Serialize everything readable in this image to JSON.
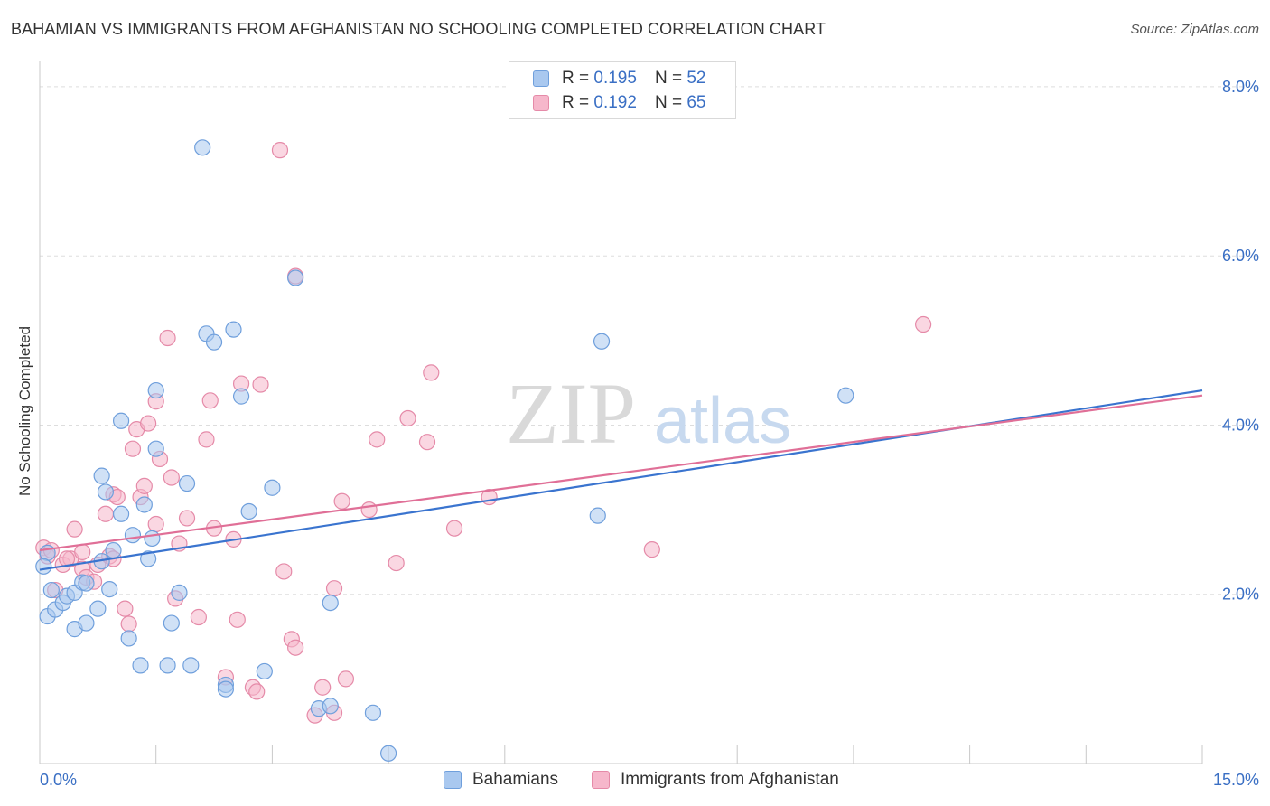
{
  "title": "BAHAMIAN VS IMMIGRANTS FROM AFGHANISTAN NO SCHOOLING COMPLETED CORRELATION CHART",
  "source": "Source: ZipAtlas.com",
  "watermark": {
    "zip": "ZIP",
    "atlas": "atlas"
  },
  "legend": {
    "r_label": "R =",
    "n_label": "N =",
    "series": [
      {
        "r": "0.195",
        "n": "52"
      },
      {
        "r": "0.192",
        "n": "65"
      }
    ]
  },
  "colors": {
    "blue_fill": "#a9c8ef",
    "blue_stroke": "#6f9fdc",
    "blue_line": "#3a74cf",
    "pink_fill": "#f6b7cb",
    "pink_stroke": "#e58aa8",
    "pink_line": "#e06f97",
    "tick": "#3a6fc4",
    "grid": "#dddddd"
  },
  "chart_data": {
    "type": "scatter",
    "title": "BAHAMIAN VS IMMIGRANTS FROM AFGHANISTAN NO SCHOOLING COMPLETED CORRELATION CHART",
    "xlabel": "",
    "ylabel": "No Schooling Completed",
    "xlim": [
      0,
      15
    ],
    "ylim": [
      0,
      8
    ],
    "x_tick_labels": {
      "min": "0.0%",
      "max": "15.0%"
    },
    "y_ticks": [
      {
        "value": 2,
        "label": "2.0%"
      },
      {
        "value": 4,
        "label": "4.0%"
      },
      {
        "value": 6,
        "label": "6.0%"
      },
      {
        "value": 8,
        "label": "8.0%"
      }
    ],
    "series": [
      {
        "name": "Bahamians",
        "color": "#a9c8ef",
        "trend": {
          "x": [
            0,
            15
          ],
          "y": [
            2.29,
            4.41
          ]
        },
        "points": [
          [
            0.1,
            2.49
          ],
          [
            0.05,
            2.33
          ],
          [
            0.1,
            1.74
          ],
          [
            0.15,
            2.05
          ],
          [
            0.2,
            1.82
          ],
          [
            0.3,
            1.9
          ],
          [
            0.35,
            1.98
          ],
          [
            0.45,
            2.02
          ],
          [
            0.45,
            1.59
          ],
          [
            0.6,
            1.66
          ],
          [
            0.55,
            2.14
          ],
          [
            0.6,
            2.13
          ],
          [
            0.75,
            1.83
          ],
          [
            0.8,
            2.39
          ],
          [
            0.8,
            3.4
          ],
          [
            0.85,
            3.21
          ],
          [
            0.9,
            2.06
          ],
          [
            0.95,
            2.52
          ],
          [
            1.05,
            2.95
          ],
          [
            1.05,
            4.05
          ],
          [
            1.15,
            1.48
          ],
          [
            1.2,
            2.7
          ],
          [
            1.3,
            1.16
          ],
          [
            1.35,
            3.06
          ],
          [
            1.4,
            2.42
          ],
          [
            1.45,
            2.66
          ],
          [
            1.5,
            3.72
          ],
          [
            1.5,
            4.41
          ],
          [
            1.65,
            1.16
          ],
          [
            1.7,
            1.66
          ],
          [
            1.8,
            2.02
          ],
          [
            1.9,
            3.31
          ],
          [
            1.95,
            1.16
          ],
          [
            2.1,
            7.28
          ],
          [
            2.15,
            5.08
          ],
          [
            2.25,
            4.98
          ],
          [
            2.4,
            0.93
          ],
          [
            2.4,
            0.88
          ],
          [
            2.5,
            5.13
          ],
          [
            2.6,
            4.34
          ],
          [
            2.7,
            2.98
          ],
          [
            2.9,
            1.09
          ],
          [
            3.0,
            3.26
          ],
          [
            3.3,
            5.74
          ],
          [
            3.6,
            0.65
          ],
          [
            3.75,
            0.68
          ],
          [
            3.75,
            1.9
          ],
          [
            4.3,
            0.6
          ],
          [
            4.5,
            0.12
          ],
          [
            7.25,
            4.99
          ],
          [
            7.2,
            2.93
          ],
          [
            10.4,
            4.35
          ]
        ]
      },
      {
        "name": "Immigrants from Afghanistan",
        "color": "#f6b7cb",
        "trend": {
          "x": [
            0,
            15
          ],
          "y": [
            2.52,
            4.35
          ]
        },
        "points": [
          [
            0.05,
            2.55
          ],
          [
            0.1,
            2.45
          ],
          [
            0.15,
            2.52
          ],
          [
            0.2,
            2.05
          ],
          [
            0.3,
            2.35
          ],
          [
            0.4,
            2.42
          ],
          [
            0.45,
            2.77
          ],
          [
            0.55,
            2.5
          ],
          [
            0.55,
            2.3
          ],
          [
            0.6,
            2.2
          ],
          [
            0.7,
            2.15
          ],
          [
            0.75,
            2.35
          ],
          [
            0.85,
            2.95
          ],
          [
            0.9,
            2.45
          ],
          [
            0.95,
            3.18
          ],
          [
            1.0,
            3.15
          ],
          [
            1.1,
            1.83
          ],
          [
            1.15,
            1.65
          ],
          [
            1.2,
            3.72
          ],
          [
            1.25,
            3.95
          ],
          [
            1.3,
            3.15
          ],
          [
            1.35,
            3.28
          ],
          [
            1.4,
            4.02
          ],
          [
            1.5,
            2.83
          ],
          [
            1.5,
            4.28
          ],
          [
            1.55,
            3.6
          ],
          [
            1.65,
            5.03
          ],
          [
            1.7,
            3.38
          ],
          [
            1.75,
            1.95
          ],
          [
            1.8,
            2.6
          ],
          [
            1.9,
            2.9
          ],
          [
            2.05,
            1.73
          ],
          [
            2.15,
            3.83
          ],
          [
            2.2,
            4.29
          ],
          [
            2.25,
            2.78
          ],
          [
            2.4,
            1.02
          ],
          [
            2.5,
            2.65
          ],
          [
            2.55,
            1.7
          ],
          [
            2.6,
            4.49
          ],
          [
            2.75,
            0.9
          ],
          [
            2.8,
            0.85
          ],
          [
            2.85,
            4.48
          ],
          [
            3.1,
            7.25
          ],
          [
            3.15,
            2.27
          ],
          [
            3.25,
            1.47
          ],
          [
            3.3,
            5.76
          ],
          [
            3.3,
            1.37
          ],
          [
            3.55,
            0.57
          ],
          [
            3.65,
            0.9
          ],
          [
            3.8,
            0.6
          ],
          [
            3.8,
            2.07
          ],
          [
            3.9,
            3.1
          ],
          [
            3.95,
            1.0
          ],
          [
            4.25,
            3.0
          ],
          [
            4.35,
            3.83
          ],
          [
            4.6,
            2.37
          ],
          [
            4.75,
            4.08
          ],
          [
            5.0,
            3.8
          ],
          [
            5.05,
            4.62
          ],
          [
            5.35,
            2.78
          ],
          [
            5.8,
            3.15
          ],
          [
            7.9,
            2.53
          ],
          [
            11.4,
            5.19
          ],
          [
            0.35,
            2.42
          ],
          [
            0.95,
            2.42
          ]
        ]
      }
    ]
  }
}
